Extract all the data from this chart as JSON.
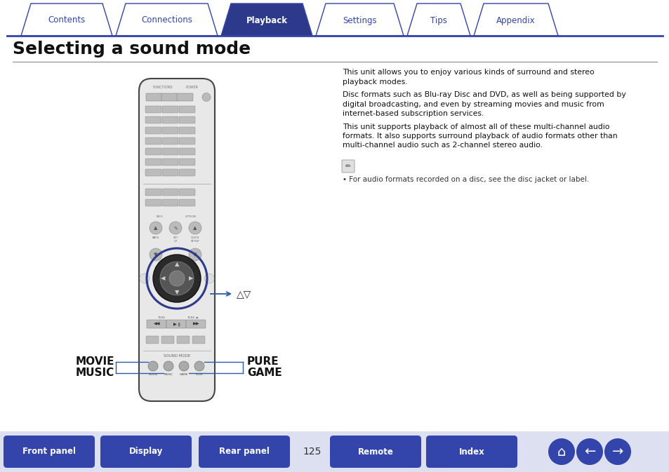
{
  "bg_color": "#ffffff",
  "tab_items": [
    "Contents",
    "Connections",
    "Playback",
    "Settings",
    "Tips",
    "Appendix"
  ],
  "tab_active": 2,
  "tab_color_active": "#2d3a8c",
  "tab_color_inactive": "#ffffff",
  "tab_text_color_active": "#ffffff",
  "tab_text_color_inactive": "#3344aa",
  "tab_border_color": "#3344aa",
  "title": "Selecting a sound mode",
  "title_fontsize": 18,
  "body_text_1": "This unit allows you to enjoy various kinds of surround and stereo\nplayback modes.",
  "body_text_2": "Disc formats such as Blu-ray Disc and DVD, as well as being supported by\ndigital broadcasting, and even by streaming movies and music from\ninternet-based subscription services.",
  "body_text_3": "This unit supports playback of almost all of these multi-channel audio\nformats. It also supports surround playback of audio formats other than\nmulti-channel audio such as 2-channel stereo audio.",
  "note_text": "For audio formats recorded on a disc, see the disc jacket or label.",
  "arrow_label": "△▽",
  "footer_buttons": [
    "Front panel",
    "Display",
    "Rear panel",
    "Remote",
    "Index"
  ],
  "page_number": "125",
  "footer_bg_color": "#3344aa",
  "footer_text_color": "#ffffff",
  "highlight_color": "#2d3a8c",
  "line_color": "#2d5aaa",
  "remote_body_color": "#e8e8e8",
  "remote_edge_color": "#444444",
  "btn_color": "#bbbbbb",
  "btn_edge": "#888888",
  "dpad_outer": "#2a2a2a",
  "dpad_center": "#555555"
}
